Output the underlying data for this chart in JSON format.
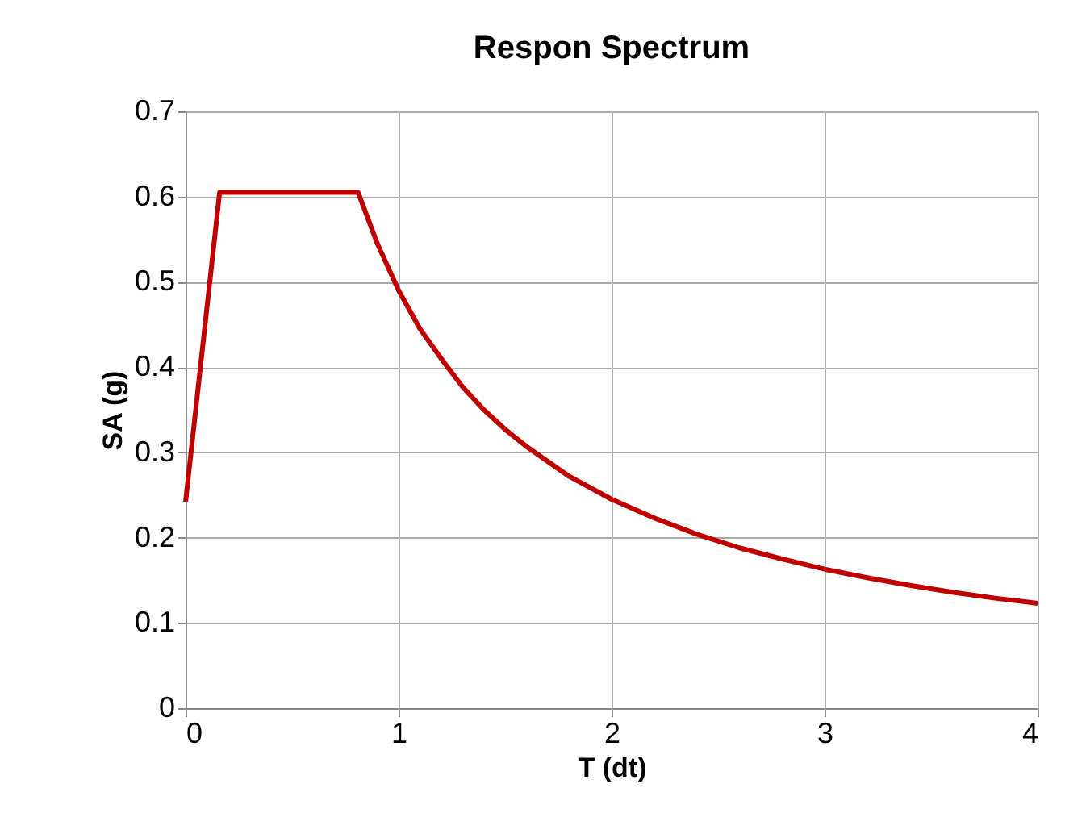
{
  "chart_data": {
    "type": "line",
    "title": "Respon Spectrum",
    "xlabel": "T (dt)",
    "ylabel": "SA (g)",
    "x": [
      0,
      0.16,
      0.81,
      0.9,
      1.0,
      1.1,
      1.2,
      1.3,
      1.4,
      1.5,
      1.6,
      1.8,
      2.0,
      2.2,
      2.4,
      2.6,
      2.8,
      3.0,
      3.2,
      3.4,
      3.6,
      3.8,
      4.0
    ],
    "series": [
      {
        "color": "#c00000",
        "values": [
          0.242,
          0.605,
          0.605,
          0.545,
          0.49,
          0.445,
          0.41,
          0.377,
          0.35,
          0.327,
          0.307,
          0.272,
          0.245,
          0.223,
          0.204,
          0.188,
          0.175,
          0.163,
          0.153,
          0.144,
          0.136,
          0.129,
          0.123
        ]
      }
    ],
    "xlim": [
      0,
      4
    ],
    "xticks": [
      0,
      1,
      2,
      3,
      4
    ],
    "ylim": [
      0,
      0.7
    ],
    "yticks": [
      0,
      0.1,
      0.2,
      0.3,
      0.4,
      0.5,
      0.6,
      0.7
    ],
    "grid": true,
    "marker": "none",
    "line_style": "solid"
  }
}
